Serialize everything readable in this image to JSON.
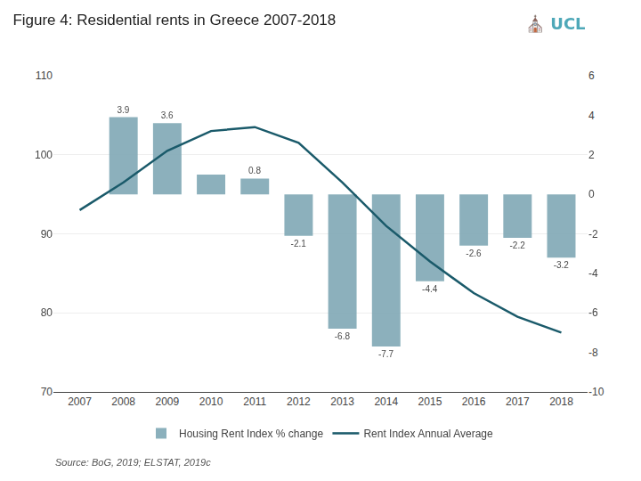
{
  "chart_data": {
    "type": "bar",
    "title": "Figure 4: Residential rents in Greece 2007-2018",
    "annotations": [
      "⛪ UCL",
      "Source: BoG, 2019; ELSTAT, 2019c"
    ],
    "x": [
      2007,
      2008,
      2009,
      2010,
      2011,
      2012,
      2013,
      2014,
      2015,
      2016,
      2017,
      2018
    ],
    "series": [
      {
        "name": "Housing Rent Index % change",
        "type": "bar",
        "axis": "y2",
        "color": "#7fa8b5",
        "values": [
          0.0,
          3.9,
          3.6,
          1.0,
          0.8,
          -2.1,
          -6.8,
          -7.7,
          -4.4,
          -2.6,
          -2.2,
          -3.2
        ],
        "data_labels": true,
        "value_labels": [
          null,
          "3.9",
          "3.6",
          null,
          "0.8",
          "-2.1",
          "-6.8",
          "-7.7",
          "-4.4",
          "-2.6",
          "-2.2",
          "-3.2"
        ]
      },
      {
        "name": "Rent Index Annual Average",
        "type": "line",
        "axis": "y",
        "color": "#1a5a6a",
        "values": [
          93.0,
          96.5,
          100.5,
          103.0,
          103.5,
          101.5,
          96.5,
          91.0,
          86.5,
          82.5,
          79.5,
          77.5
        ]
      }
    ],
    "xlim": [
      2006.4,
      2018.6
    ],
    "xticks": [
      2007,
      2008,
      2009,
      2010,
      2011,
      2012,
      2013,
      2014,
      2015,
      2016,
      2017,
      2018
    ],
    "ylim": [
      70,
      110
    ],
    "yticks": [
      70,
      80,
      90,
      100,
      110
    ],
    "y2lim": [
      -10,
      6
    ],
    "y2ticks": [
      -10,
      -8,
      -6,
      -4,
      -2,
      0,
      2,
      4,
      6
    ],
    "grid": "y",
    "legend": "bottom"
  }
}
